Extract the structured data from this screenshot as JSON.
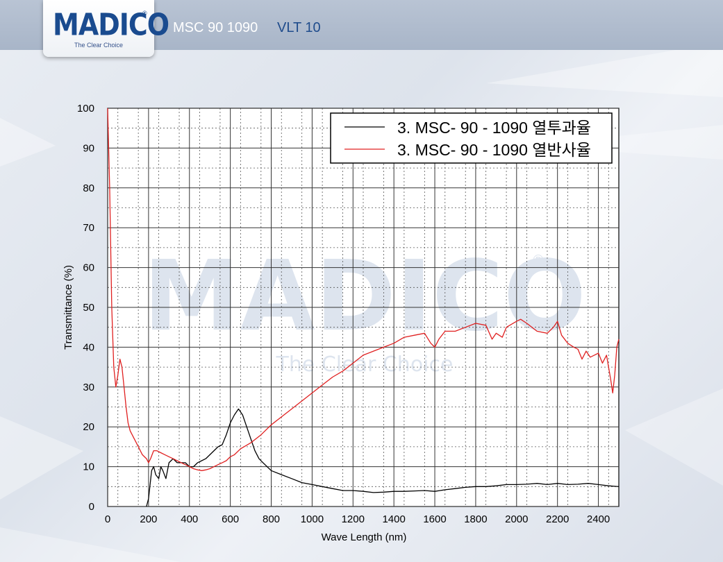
{
  "header": {
    "brand": "MADICO",
    "brand_mark": "®",
    "tagline": "The Clear Choice",
    "model": "MSC 90 1090",
    "vlt": "VLT 10"
  },
  "watermark": {
    "text": "MADICO",
    "tagline": "The Clear Choice",
    "mark": "®"
  },
  "chart_data": {
    "type": "line",
    "title": "",
    "xlabel": "Wave Length (nm)",
    "ylabel": "Transmittance (%)",
    "xlim": [
      0,
      2500
    ],
    "ylim": [
      0,
      100
    ],
    "x_ticks": [
      0,
      200,
      400,
      600,
      800,
      1000,
      1200,
      1400,
      1600,
      1800,
      2000,
      2200,
      2400
    ],
    "y_ticks": [
      0,
      10,
      20,
      30,
      40,
      50,
      60,
      70,
      80,
      90,
      100
    ],
    "grid": true,
    "legend_position": "top-right",
    "series": [
      {
        "name": "3. MSC- 90 - 1090  열투과율",
        "color": "#000000",
        "points": [
          [
            190,
            0
          ],
          [
            200,
            2
          ],
          [
            215,
            9
          ],
          [
            225,
            10
          ],
          [
            235,
            8
          ],
          [
            250,
            7
          ],
          [
            260,
            10
          ],
          [
            270,
            9
          ],
          [
            285,
            7
          ],
          [
            300,
            11
          ],
          [
            320,
            12
          ],
          [
            340,
            11
          ],
          [
            360,
            11
          ],
          [
            380,
            11
          ],
          [
            400,
            10
          ],
          [
            420,
            10
          ],
          [
            440,
            11
          ],
          [
            460,
            11.5
          ],
          [
            480,
            12
          ],
          [
            500,
            13
          ],
          [
            520,
            14
          ],
          [
            540,
            15
          ],
          [
            560,
            15.5
          ],
          [
            580,
            18
          ],
          [
            600,
            21
          ],
          [
            620,
            23
          ],
          [
            640,
            24.5
          ],
          [
            660,
            23
          ],
          [
            680,
            20
          ],
          [
            700,
            17
          ],
          [
            720,
            14
          ],
          [
            740,
            12
          ],
          [
            760,
            11
          ],
          [
            780,
            10
          ],
          [
            800,
            9
          ],
          [
            850,
            8
          ],
          [
            900,
            7
          ],
          [
            950,
            6
          ],
          [
            1000,
            5.5
          ],
          [
            1050,
            5
          ],
          [
            1100,
            4.5
          ],
          [
            1150,
            4
          ],
          [
            1200,
            4
          ],
          [
            1250,
            3.8
          ],
          [
            1300,
            3.5
          ],
          [
            1350,
            3.6
          ],
          [
            1400,
            3.8
          ],
          [
            1450,
            3.8
          ],
          [
            1500,
            3.9
          ],
          [
            1550,
            4
          ],
          [
            1600,
            3.8
          ],
          [
            1650,
            4.2
          ],
          [
            1700,
            4.5
          ],
          [
            1750,
            4.8
          ],
          [
            1800,
            5
          ],
          [
            1850,
            5
          ],
          [
            1900,
            5.2
          ],
          [
            1950,
            5.5
          ],
          [
            2000,
            5.5
          ],
          [
            2050,
            5.6
          ],
          [
            2100,
            5.8
          ],
          [
            2150,
            5.5
          ],
          [
            2200,
            5.8
          ],
          [
            2250,
            5.5
          ],
          [
            2300,
            5.6
          ],
          [
            2350,
            5.8
          ],
          [
            2400,
            5.5
          ],
          [
            2450,
            5.2
          ],
          [
            2500,
            5
          ]
        ]
      },
      {
        "name": "3. MSC- 90 - 1090  열반사율",
        "color": "#e02020",
        "points": [
          [
            0,
            100
          ],
          [
            10,
            80
          ],
          [
            20,
            50
          ],
          [
            30,
            35
          ],
          [
            40,
            30
          ],
          [
            50,
            33
          ],
          [
            60,
            37
          ],
          [
            70,
            35
          ],
          [
            80,
            30
          ],
          [
            90,
            25
          ],
          [
            100,
            21
          ],
          [
            110,
            19
          ],
          [
            130,
            17
          ],
          [
            150,
            15
          ],
          [
            170,
            13
          ],
          [
            190,
            12
          ],
          [
            200,
            11
          ],
          [
            210,
            12
          ],
          [
            225,
            14
          ],
          [
            240,
            14
          ],
          [
            260,
            13.5
          ],
          [
            280,
            13
          ],
          [
            300,
            12.5
          ],
          [
            320,
            12
          ],
          [
            340,
            11.5
          ],
          [
            360,
            11
          ],
          [
            380,
            10.5
          ],
          [
            400,
            10
          ],
          [
            420,
            9.5
          ],
          [
            440,
            9.2
          ],
          [
            460,
            9
          ],
          [
            480,
            9.2
          ],
          [
            500,
            9.5
          ],
          [
            520,
            10
          ],
          [
            540,
            10.5
          ],
          [
            560,
            11
          ],
          [
            580,
            11.5
          ],
          [
            600,
            12.5
          ],
          [
            620,
            13
          ],
          [
            650,
            14.5
          ],
          [
            700,
            16
          ],
          [
            750,
            18
          ],
          [
            800,
            20.5
          ],
          [
            850,
            22.5
          ],
          [
            900,
            24.5
          ],
          [
            950,
            26.5
          ],
          [
            1000,
            28.5
          ],
          [
            1050,
            30.5
          ],
          [
            1100,
            32.5
          ],
          [
            1150,
            34
          ],
          [
            1200,
            36
          ],
          [
            1250,
            38
          ],
          [
            1300,
            39
          ],
          [
            1350,
            40
          ],
          [
            1400,
            41
          ],
          [
            1450,
            42.5
          ],
          [
            1500,
            43
          ],
          [
            1550,
            43.5
          ],
          [
            1580,
            41
          ],
          [
            1600,
            40
          ],
          [
            1620,
            42
          ],
          [
            1650,
            44
          ],
          [
            1700,
            44
          ],
          [
            1750,
            45
          ],
          [
            1800,
            46
          ],
          [
            1850,
            45.5
          ],
          [
            1880,
            42
          ],
          [
            1900,
            43.5
          ],
          [
            1930,
            42.5
          ],
          [
            1950,
            45
          ],
          [
            2000,
            46.5
          ],
          [
            2020,
            47
          ],
          [
            2050,
            46
          ],
          [
            2100,
            44
          ],
          [
            2150,
            43.5
          ],
          [
            2180,
            45
          ],
          [
            2200,
            46.5
          ],
          [
            2220,
            43
          ],
          [
            2250,
            41
          ],
          [
            2280,
            40
          ],
          [
            2300,
            39.5
          ],
          [
            2320,
            37
          ],
          [
            2340,
            39
          ],
          [
            2360,
            37.5
          ],
          [
            2380,
            38
          ],
          [
            2400,
            38.5
          ],
          [
            2420,
            36
          ],
          [
            2440,
            38
          ],
          [
            2460,
            32
          ],
          [
            2470,
            28.5
          ],
          [
            2480,
            33
          ],
          [
            2490,
            40
          ],
          [
            2500,
            42
          ]
        ]
      }
    ]
  }
}
